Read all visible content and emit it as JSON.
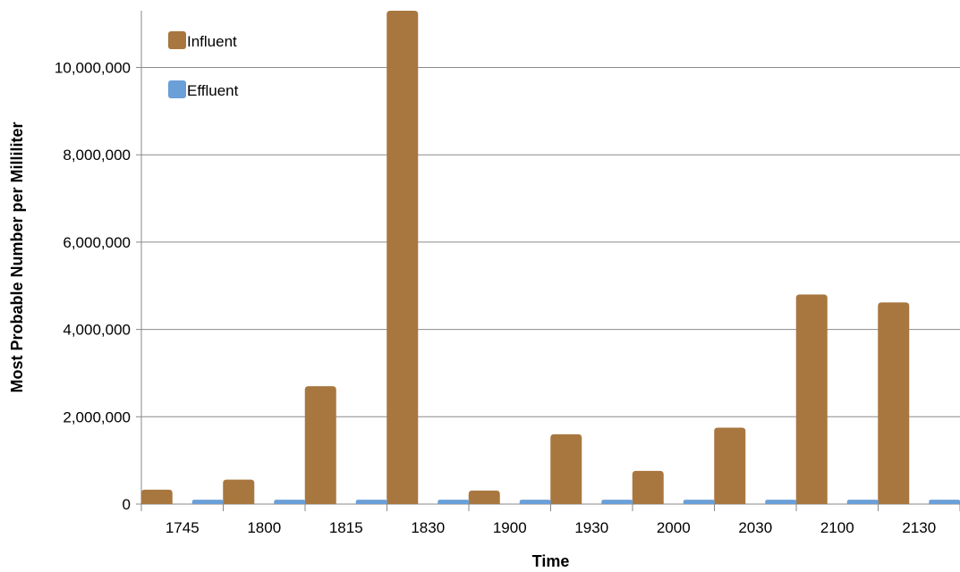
{
  "chart_data": {
    "type": "bar",
    "title": "",
    "xlabel": "Time",
    "ylabel": "Most Probable Number per Milliliter",
    "categories": [
      "1745",
      "1800",
      "1815",
      "1830",
      "1900",
      "1930",
      "2000",
      "2030",
      "2100",
      "2130"
    ],
    "series": [
      {
        "name": "Influent",
        "color": "#a8773f",
        "values": [
          330000,
          560000,
          2700000,
          11300000,
          310000,
          1600000,
          760000,
          1750000,
          4800000,
          4620000
        ]
      },
      {
        "name": "Effluent",
        "color": "#6a9fd8",
        "values": [
          100000,
          100000,
          100000,
          100000,
          100000,
          100000,
          100000,
          100000,
          100000,
          100000
        ]
      }
    ],
    "ylim": [
      0,
      11300000
    ],
    "yticks": [
      0,
      2000000,
      4000000,
      6000000,
      8000000,
      10000000
    ],
    "ytick_labels": [
      "0",
      "2,000,000",
      "4,000,000",
      "6,000,000",
      "8,000,000",
      "10,000,000"
    ],
    "grid": true,
    "legend_position": "top-left"
  }
}
